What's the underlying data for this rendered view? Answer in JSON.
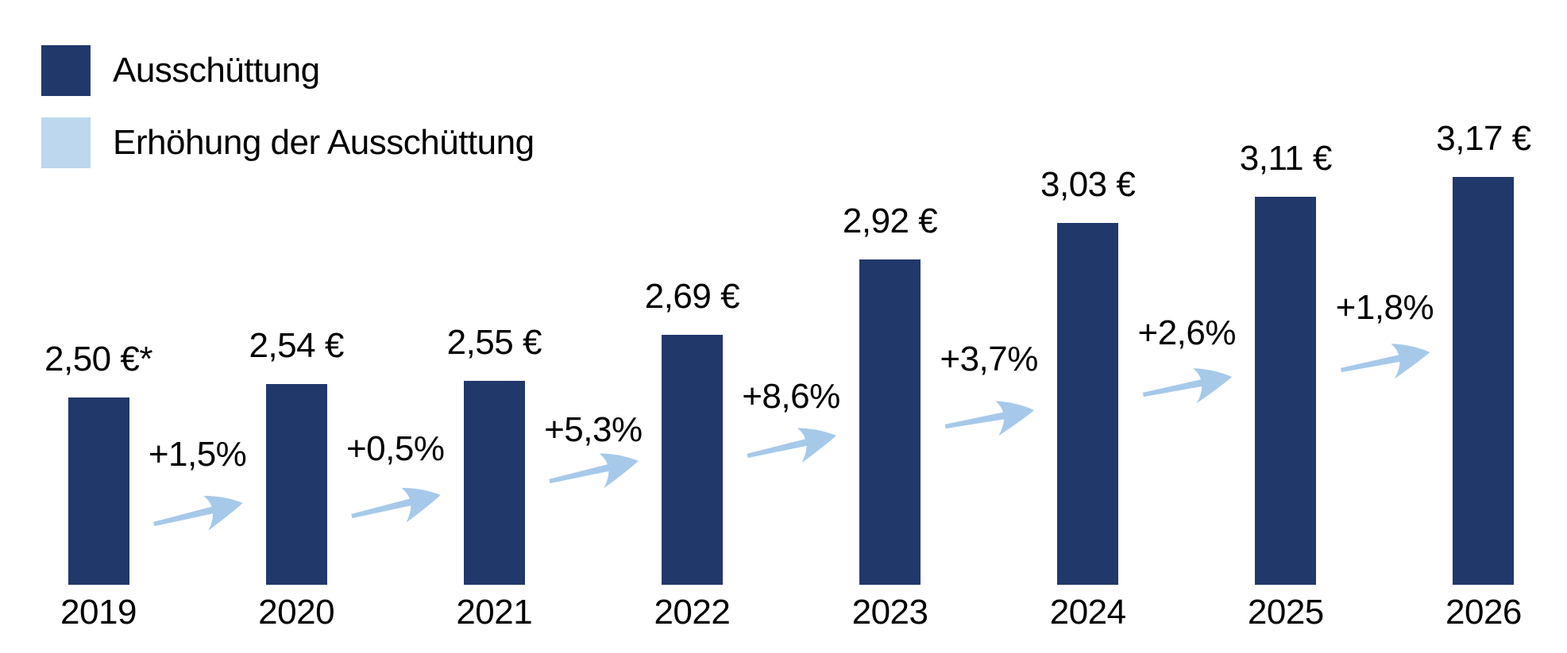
{
  "chart_data": {
    "type": "bar",
    "categories": [
      "2019",
      "2020",
      "2021",
      "2022",
      "2023",
      "2024",
      "2025",
      "2026"
    ],
    "values": [
      2.5,
      2.54,
      2.55,
      2.69,
      2.92,
      3.03,
      3.11,
      3.17
    ],
    "value_labels": [
      "2,50 €*",
      "2,54 €",
      "2,55 €",
      "2,69 €",
      "2,92 €",
      "3,03 €",
      "3,11 €",
      "3,17 €"
    ],
    "increase_labels": [
      "+1,5%",
      "+0,5%",
      "+5,3%",
      "+8,6%",
      "+3,7%",
      "+2,6%",
      "+1,8%"
    ],
    "increase_values_percent": [
      1.5,
      0.5,
      5.3,
      8.6,
      3.7,
      2.6,
      1.8
    ],
    "unit": "€",
    "legend": [
      {
        "label": "Ausschüttung",
        "color": "#21386B"
      },
      {
        "label": "Erhöhung der Ausschüttung",
        "color": "#BDD7EE"
      }
    ],
    "legend_position": "top-left",
    "grid": false,
    "axis_lines": false,
    "colors": {
      "bar": "#21386B",
      "arrow": "#A6C9EA",
      "text": "#000000",
      "background": "#FFFFFF"
    }
  }
}
